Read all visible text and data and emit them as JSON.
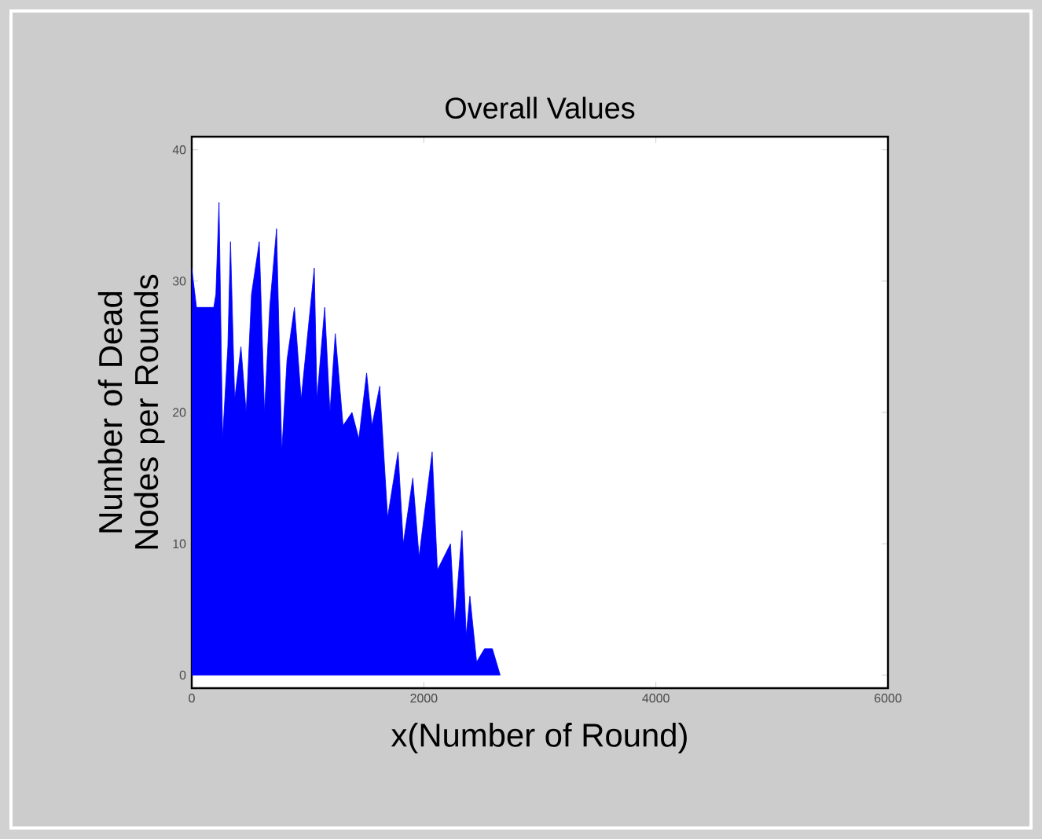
{
  "chart_data": {
    "type": "area",
    "title": "Overall Values",
    "xlabel": "x(Number of Round)",
    "ylabel": "Number of Dead Nodes per Rounds",
    "xlim": [
      0,
      6000
    ],
    "xticks": [
      0,
      2000,
      4000,
      6000
    ],
    "ylim": [
      -1,
      41
    ],
    "yticks": [
      0,
      10,
      20,
      30,
      40
    ],
    "tick_labels": true,
    "series": [
      {
        "color": "#0000ff",
        "x": [
          0,
          41,
          190,
          208,
          235,
          266,
          311,
          334,
          370,
          424,
          469,
          515,
          582,
          627,
          672,
          731,
          776,
          821,
          885,
          943,
          1056,
          1079,
          1146,
          1191,
          1237,
          1304,
          1381,
          1440,
          1507,
          1553,
          1620,
          1688,
          1778,
          1823,
          1905,
          1959,
          2072,
          2117,
          2230,
          2266,
          2329,
          2365,
          2397,
          2455,
          2523,
          2591,
          2658
        ],
        "values": [
          31,
          28,
          28,
          29,
          36,
          18,
          25,
          33,
          21,
          25,
          20,
          29,
          33,
          20,
          28,
          34,
          17,
          24,
          28,
          21,
          31,
          21,
          28,
          20,
          26,
          19,
          20,
          18,
          23,
          19,
          22,
          12,
          17,
          10,
          15,
          9,
          17,
          8,
          10,
          4,
          11,
          3,
          6,
          1,
          2,
          2,
          0
        ]
      }
    ]
  }
}
